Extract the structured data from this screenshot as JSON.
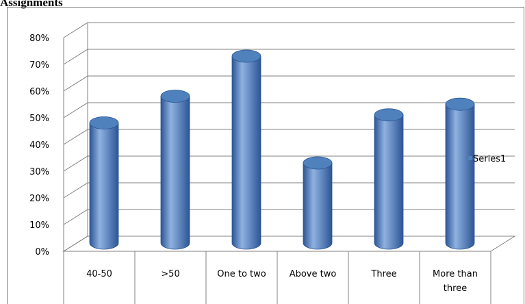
{
  "page": {
    "title": "Assignments"
  },
  "chart_data": {
    "type": "bar",
    "categories": [
      "40-50",
      ">50",
      "One to two",
      "Above two",
      "Three",
      "More than three"
    ],
    "series": [
      {
        "name": "Series1",
        "values": [
          0.45,
          0.55,
          0.7,
          0.3,
          0.48,
          0.52
        ]
      }
    ],
    "y_ticks": [
      "0%",
      "10%",
      "20%",
      "30%",
      "40%",
      "50%",
      "60%",
      "70%",
      "80%"
    ],
    "ylim": [
      0,
      0.8
    ],
    "grid": true,
    "legend_position": "right",
    "colors": {
      "bar": "#4f81bd",
      "bar_dark": "#2c5595",
      "bar_light": "#8fb2e0",
      "grid": "#808080"
    }
  }
}
